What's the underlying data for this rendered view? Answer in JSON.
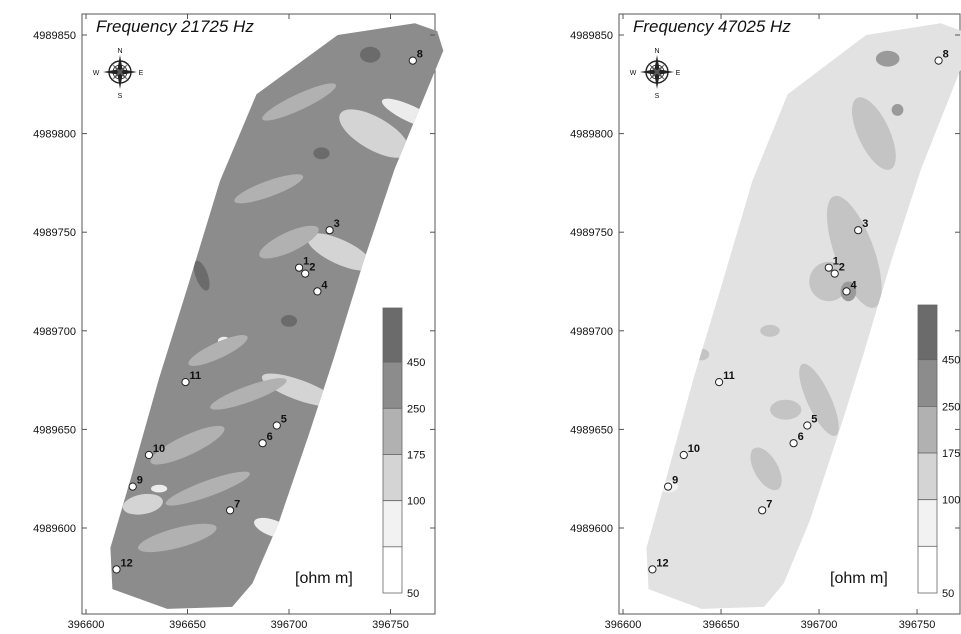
{
  "panels": [
    {
      "title": "Frequency 21725 Hz",
      "base_fill": "#8c8c8c",
      "high_fill": "#6b6b6b",
      "mid_fill": "#b1b1b1",
      "low_fill": "#d4d4d4",
      "lowest_fill": "#ececec"
    },
    {
      "title": "Frequency 47025 Hz",
      "base_fill": "#e2e2e2",
      "high_fill": "#9a9a9a",
      "mid_fill": "#c4c4c4",
      "low_fill": "#b1b1b1",
      "lowest_fill": "#f2f2f2"
    }
  ],
  "x_ticks": [
    "396600",
    "396650",
    "396700",
    "396750"
  ],
  "y_ticks": [
    "4989850",
    "4989800",
    "4989750",
    "4989700",
    "4989650",
    "4989600"
  ],
  "legend": {
    "unit": "[ohm m]",
    "labels": [
      "450",
      "250",
      "175",
      "100",
      "50"
    ],
    "colors": [
      "#6b6b6b",
      "#8c8c8c",
      "#b1b1b1",
      "#d4d4d4",
      "#f2f2f2",
      "#ffffff"
    ]
  },
  "compass": [
    "N",
    "S",
    "W",
    "E"
  ],
  "points": [
    {
      "id": "1",
      "x": 396705,
      "y": 4989732
    },
    {
      "id": "2",
      "x": 396708,
      "y": 4989729
    },
    {
      "id": "3",
      "x": 396720,
      "y": 4989751
    },
    {
      "id": "4",
      "x": 396714,
      "y": 4989720
    },
    {
      "id": "5",
      "x": 396694,
      "y": 4989652
    },
    {
      "id": "6",
      "x": 396687,
      "y": 4989643
    },
    {
      "id": "7",
      "x": 396671,
      "y": 4989609
    },
    {
      "id": "8",
      "x": 396761,
      "y": 4989837
    },
    {
      "id": "9",
      "x": 396623,
      "y": 4989621
    },
    {
      "id": "10",
      "x": 396631,
      "y": 4989637
    },
    {
      "id": "11",
      "x": 396649,
      "y": 4989674
    },
    {
      "id": "12",
      "x": 396615,
      "y": 4989579
    }
  ]
}
